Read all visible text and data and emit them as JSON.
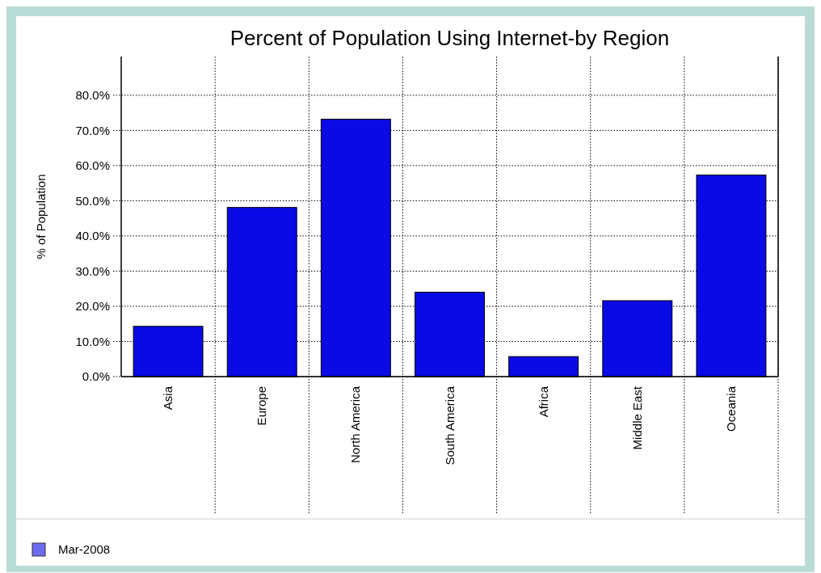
{
  "chart_data": {
    "type": "bar",
    "title": "Percent of Population Using Internet-by Region",
    "ylabel": "% of Population",
    "categories": [
      "Asia",
      "Europe",
      "North America",
      "South America",
      "Africa",
      "Middle East",
      "Oceania"
    ],
    "series": [
      {
        "name": "Mar-2008",
        "color": "#0a0ae6",
        "values": [
          14.3,
          48.1,
          73.2,
          24.0,
          5.7,
          21.6,
          57.3
        ]
      }
    ],
    "ylim": [
      0,
      91
    ],
    "yticks": [
      {
        "value": 0,
        "label": "0.0%"
      },
      {
        "value": 10,
        "label": "10.0%"
      },
      {
        "value": 20,
        "label": "20.0%"
      },
      {
        "value": 30,
        "label": "30.0%"
      },
      {
        "value": 40,
        "label": "40.0%"
      },
      {
        "value": 50,
        "label": "50.0%"
      },
      {
        "value": 60,
        "label": "60.0%"
      },
      {
        "value": 70,
        "label": "70.0%"
      },
      {
        "value": 80,
        "label": "80.0%"
      }
    ],
    "grid": true,
    "legend": "bottom"
  }
}
